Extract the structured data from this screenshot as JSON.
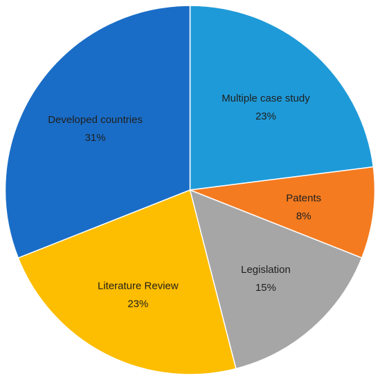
{
  "chart_data": {
    "type": "pie",
    "title": "",
    "slices": [
      {
        "label": "Multiple case study",
        "value": 23,
        "value_label": "23%",
        "color": "#1f9ad8"
      },
      {
        "label": "Patents",
        "value": 8,
        "value_label": "8%",
        "color": "#f47b20"
      },
      {
        "label": "Legislation",
        "value": 15,
        "value_label": "15%",
        "color": "#a6a6a6"
      },
      {
        "label": "Literature Review",
        "value": 23,
        "value_label": "23%",
        "color": "#fdbd00"
      },
      {
        "label": "Developed countries",
        "value": 31,
        "value_label": "31%",
        "color": "#1a6dc6"
      }
    ],
    "start_angle_deg": 0,
    "direction": "clockwise",
    "legend": "none",
    "slice_separator_color": "#ffffff"
  }
}
